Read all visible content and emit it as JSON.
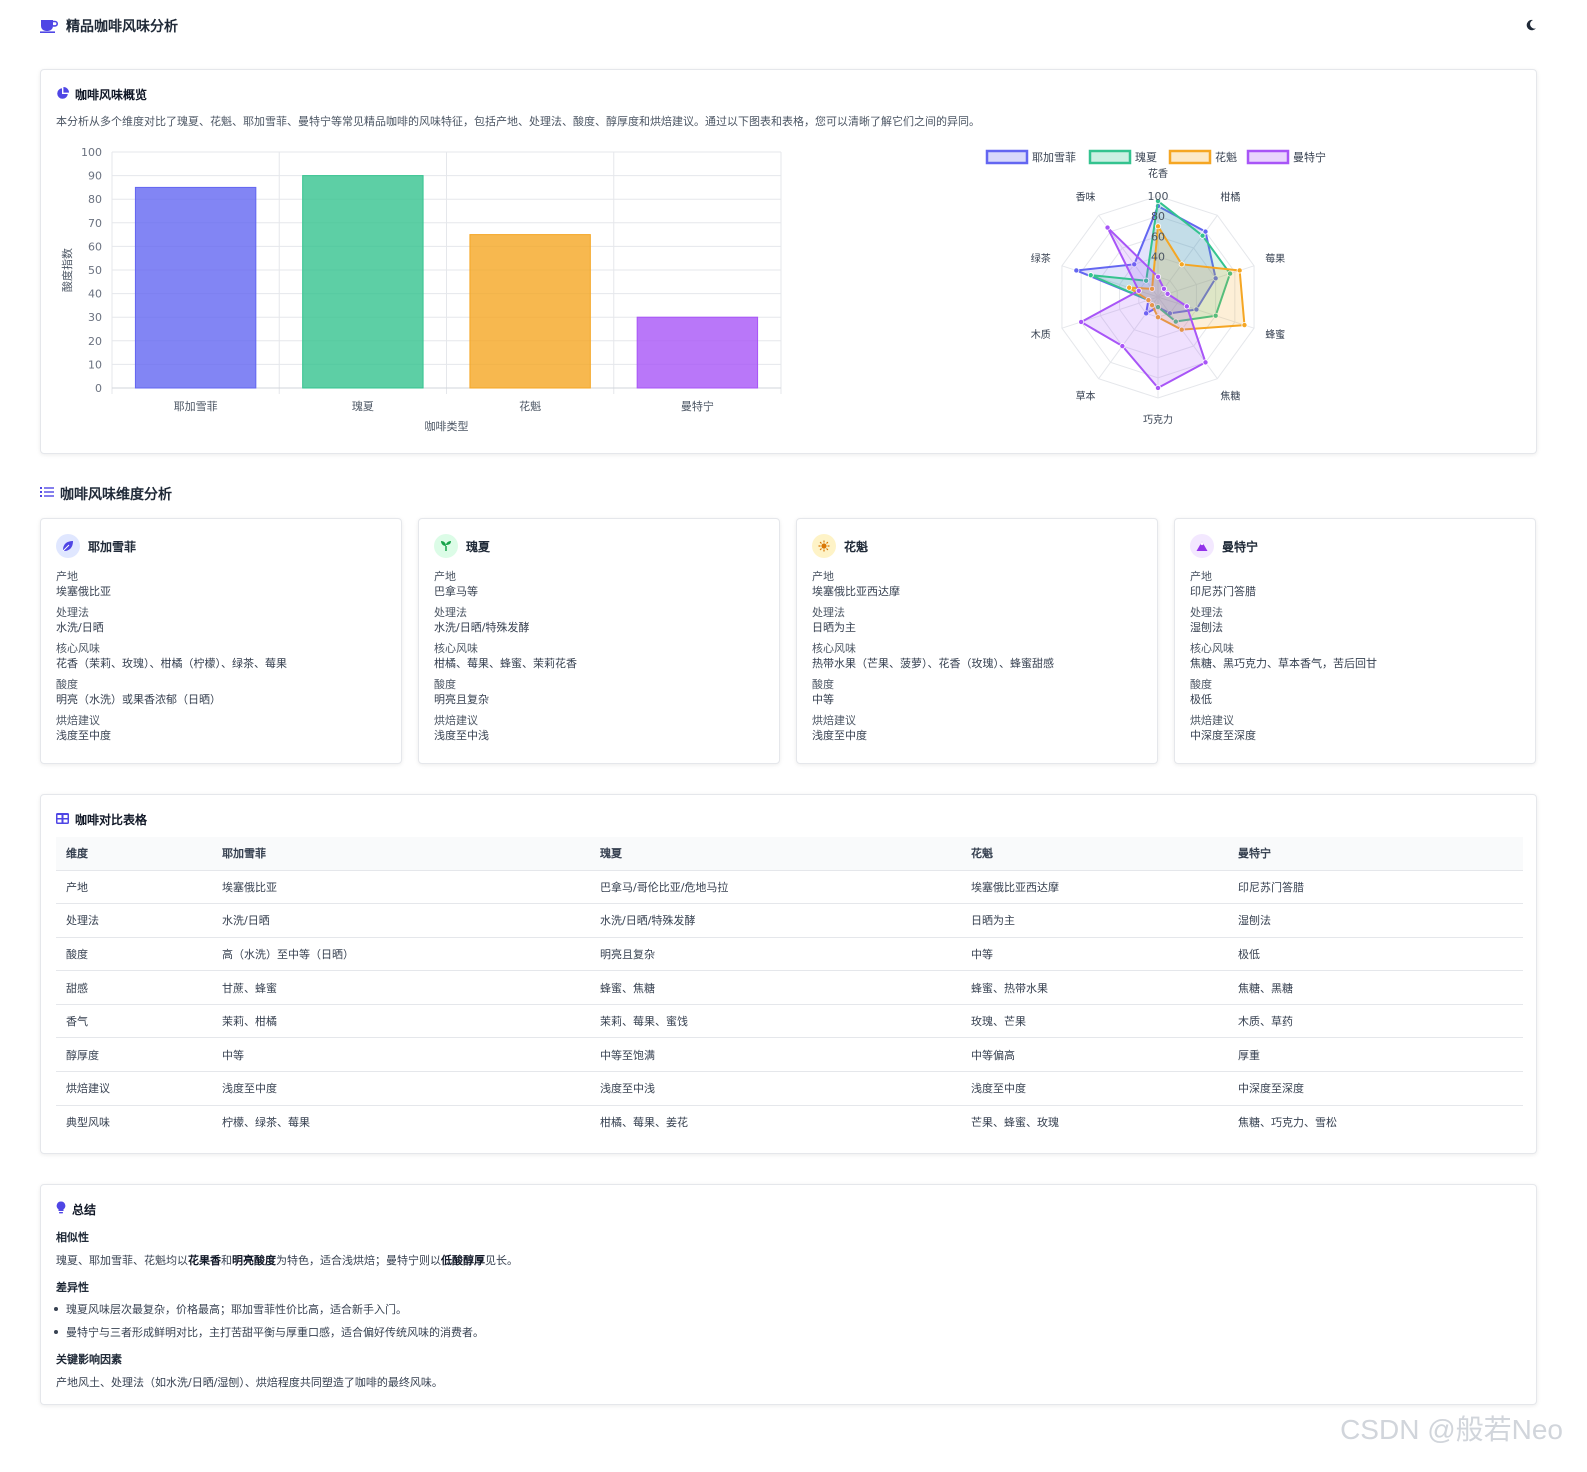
{
  "app": {
    "title": "精品咖啡风味分析"
  },
  "overview": {
    "title": "咖啡风味概览",
    "description": "本分析从多个维度对比了瑰夏、花魁、耶加雪菲、曼特宁等常见精品咖啡的风味特征，包括产地、处理法、酸度、醇厚度和烘焙建议。通过以下图表和表格，您可以清晰了解它们之间的异同。"
  },
  "colors": {
    "yega": "#6366f1",
    "geisha": "#34c38f",
    "huakui": "#f5a623",
    "mandheling": "#a855f7",
    "accent": "#4f46e5"
  },
  "chart_data": [
    {
      "type": "bar",
      "categories": [
        "耶加雪菲",
        "瑰夏",
        "花魁",
        "曼特宁"
      ],
      "values": [
        85,
        90,
        65,
        30
      ],
      "xlabel": "咖啡类型",
      "ylabel": "酸度指数",
      "ylim": [
        0,
        100
      ],
      "yticks": [
        0,
        10,
        20,
        30,
        40,
        50,
        60,
        70,
        80,
        90,
        100
      ],
      "grid": true
    },
    {
      "type": "radar",
      "axes": [
        "花香",
        "柑橘",
        "莓果",
        "蜂蜜",
        "焦糖",
        "巧克力",
        "草本",
        "木质",
        "绿茶",
        "香味"
      ],
      "rticks": [
        40,
        60,
        80,
        100
      ],
      "rlim": [
        0,
        100
      ],
      "legend_position": "top",
      "series": [
        {
          "name": "耶加雪菲",
          "values": [
            90,
            80,
            60,
            40,
            20,
            10,
            20,
            10,
            85,
            40
          ]
        },
        {
          "name": "瑰夏",
          "values": [
            95,
            75,
            75,
            60,
            30,
            10,
            10,
            10,
            70,
            20
          ]
        },
        {
          "name": "花魁",
          "values": [
            70,
            40,
            85,
            90,
            40,
            20,
            10,
            10,
            30,
            10
          ]
        },
        {
          "name": "曼特宁",
          "values": [
            20,
            10,
            10,
            30,
            80,
            90,
            60,
            80,
            20,
            85
          ]
        }
      ]
    }
  ],
  "dimensions": {
    "title": "咖啡风味维度分析",
    "labels": {
      "origin": "产地",
      "process": "处理法",
      "flavor": "核心风味",
      "acidity": "酸度",
      "roast": "烘焙建议"
    },
    "cards": [
      {
        "name": "耶加雪菲",
        "icon": "leaf-icon",
        "origin": "埃塞俄比亚",
        "process": "水洗/日晒",
        "flavor": "花香（茉莉、玫瑰）、柑橘（柠檬）、绿茶、莓果",
        "acidity": "明亮（水洗）或果香浓郁（日晒）",
        "roast": "浅度至中度"
      },
      {
        "name": "瑰夏",
        "icon": "seedling-icon",
        "origin": "巴拿马等",
        "process": "水洗/日晒/特殊发酵",
        "flavor": "柑橘、莓果、蜂蜜、茉莉花香",
        "acidity": "明亮且复杂",
        "roast": "浅度至中浅"
      },
      {
        "name": "花魁",
        "icon": "sun-icon",
        "origin": "埃塞俄比亚西达摩",
        "process": "日晒为主",
        "flavor": "热带水果（芒果、菠萝）、花香（玫瑰）、蜂蜜甜感",
        "acidity": "中等",
        "roast": "浅度至中度"
      },
      {
        "name": "曼特宁",
        "icon": "mountain-icon",
        "origin": "印尼苏门答腊",
        "process": "湿刨法",
        "flavor": "焦糖、黑巧克力、草本香气，苦后回甘",
        "acidity": "极低",
        "roast": "中深度至深度"
      }
    ]
  },
  "table": {
    "title": "咖啡对比表格",
    "headers": [
      "维度",
      "耶加雪菲",
      "瑰夏",
      "花魁",
      "曼特宁"
    ],
    "rows": [
      [
        "产地",
        "埃塞俄比亚",
        "巴拿马/哥伦比亚/危地马拉",
        "埃塞俄比亚西达摩",
        "印尼苏门答腊"
      ],
      [
        "处理法",
        "水洗/日晒",
        "水洗/日晒/特殊发酵",
        "日晒为主",
        "湿刨法"
      ],
      [
        "酸度",
        "高（水洗）至中等（日晒）",
        "明亮且复杂",
        "中等",
        "极低"
      ],
      [
        "甜感",
        "甘蔗、蜂蜜",
        "蜂蜜、焦糖",
        "蜂蜜、热带水果",
        "焦糖、黑糖"
      ],
      [
        "香气",
        "茉莉、柑橘",
        "茉莉、莓果、蜜饯",
        "玫瑰、芒果",
        "木质、草药"
      ],
      [
        "醇厚度",
        "中等",
        "中等至饱满",
        "中等偏高",
        "厚重"
      ],
      [
        "烘焙建议",
        "浅度至中度",
        "浅度至中浅",
        "浅度至中度",
        "中深度至深度"
      ],
      [
        "典型风味",
        "柠檬、绿茶、莓果",
        "柑橘、莓果、姜花",
        "芒果、蜂蜜、玫瑰",
        "焦糖、巧克力、雪松"
      ]
    ]
  },
  "summary": {
    "title": "总结",
    "similar_title": "相似性",
    "similar_1": "瑰夏、耶加雪菲、花魁均以",
    "similar_b1": "花果香",
    "similar_2": "和",
    "similar_b2": "明亮酸度",
    "similar_3": "为特色，适合浅烘焙；曼特宁则以",
    "similar_b3": "低酸醇厚",
    "similar_4": "见长。",
    "diff_title": "差异性",
    "diff_items": [
      "瑰夏风味层次最复杂，价格最高；耶加雪菲性价比高，适合新手入门。",
      "曼特宁与三者形成鲜明对比，主打苦甜平衡与厚重口感，适合偏好传统风味的消费者。"
    ],
    "key_title": "关键影响因素",
    "key_text": "产地风土、处理法（如水洗/日晒/湿刨）、烘焙程度共同塑造了咖啡的最终风味。"
  },
  "watermark": "CSDN @般若Neo"
}
